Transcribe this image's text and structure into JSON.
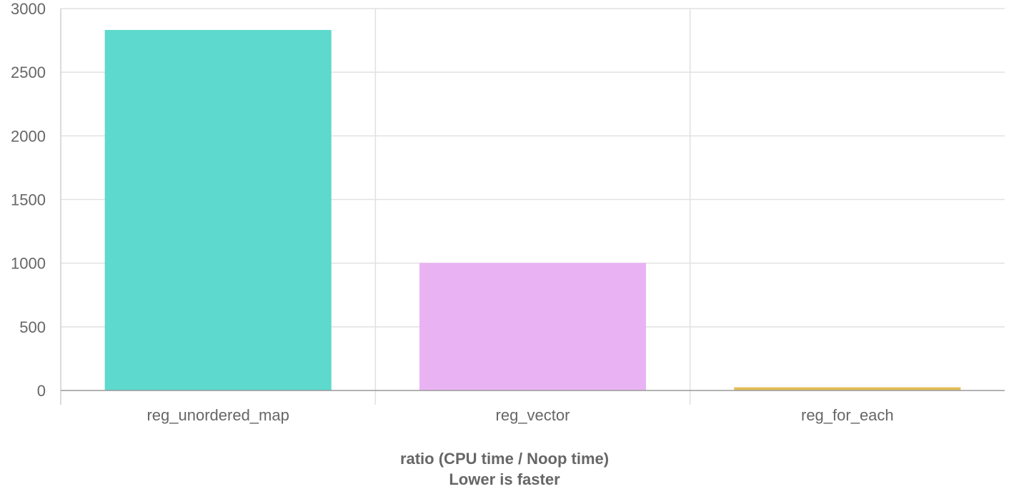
{
  "chart_data": {
    "type": "bar",
    "categories": [
      "reg_unordered_map",
      "reg_vector",
      "reg_for_each"
    ],
    "values": [
      2832,
      1002,
      25
    ],
    "colors": [
      "#5dd9cd",
      "#e9b3f3",
      "#e3bd54"
    ],
    "title": "",
    "xlabel_line1": "ratio (CPU time / Noop time)",
    "xlabel_line2": "Lower is faster",
    "ylabel": "",
    "ylim": [
      0,
      3000
    ],
    "yticks": [
      0,
      500,
      1000,
      1500,
      2000,
      2500,
      3000
    ],
    "ytick_labels": [
      "0",
      "500",
      "1000",
      "1500",
      "2000",
      "2500",
      "3000"
    ],
    "grid": true,
    "legend": "none"
  }
}
